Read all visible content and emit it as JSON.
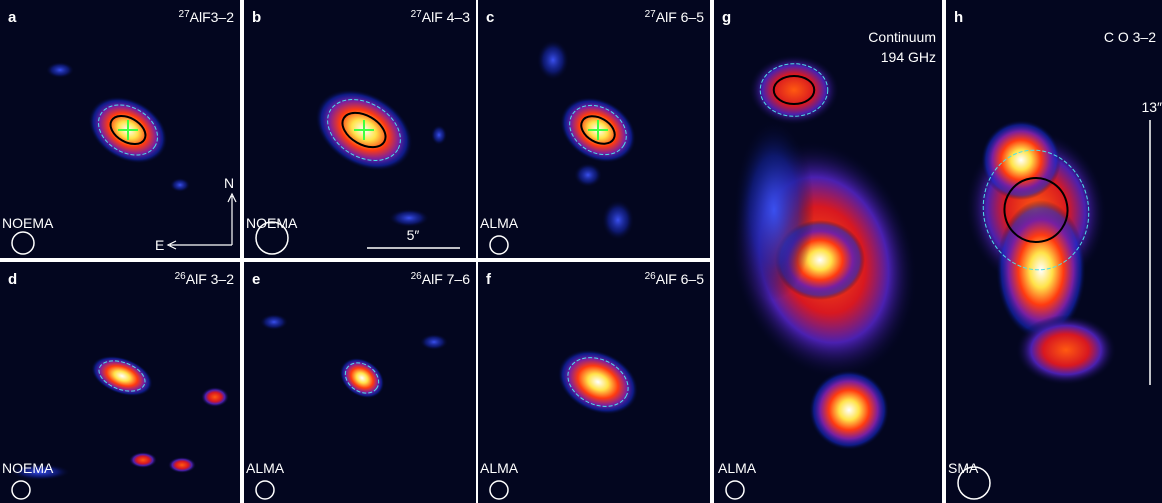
{
  "panels": [
    {
      "letter": "a",
      "isotope": "27",
      "line": "AlF3–2",
      "telescope": "NOEMA"
    },
    {
      "letter": "b",
      "isotope": "27",
      "line": "AlF 4–3",
      "telescope": "NOEMA"
    },
    {
      "letter": "c",
      "isotope": "27",
      "line": "AlF 6–5",
      "telescope": "ALMA"
    },
    {
      "letter": "d",
      "isotope": "26",
      "line": "AlF 3–2",
      "telescope": "NOEMA"
    },
    {
      "letter": "e",
      "isotope": "26",
      "line": "AlF 7–6",
      "telescope": "ALMA"
    },
    {
      "letter": "f",
      "isotope": "26",
      "line": "AlF 6–5",
      "telescope": "ALMA"
    },
    {
      "letter": "g",
      "line": "Continuum",
      "line2": "194 GHz",
      "telescope": "ALMA"
    },
    {
      "letter": "h",
      "line": "C O 3–2",
      "telescope": "SMA"
    }
  ],
  "compass": {
    "north": "N",
    "east": "E"
  },
  "scale_bars": {
    "short": "5″",
    "long": "13″"
  }
}
